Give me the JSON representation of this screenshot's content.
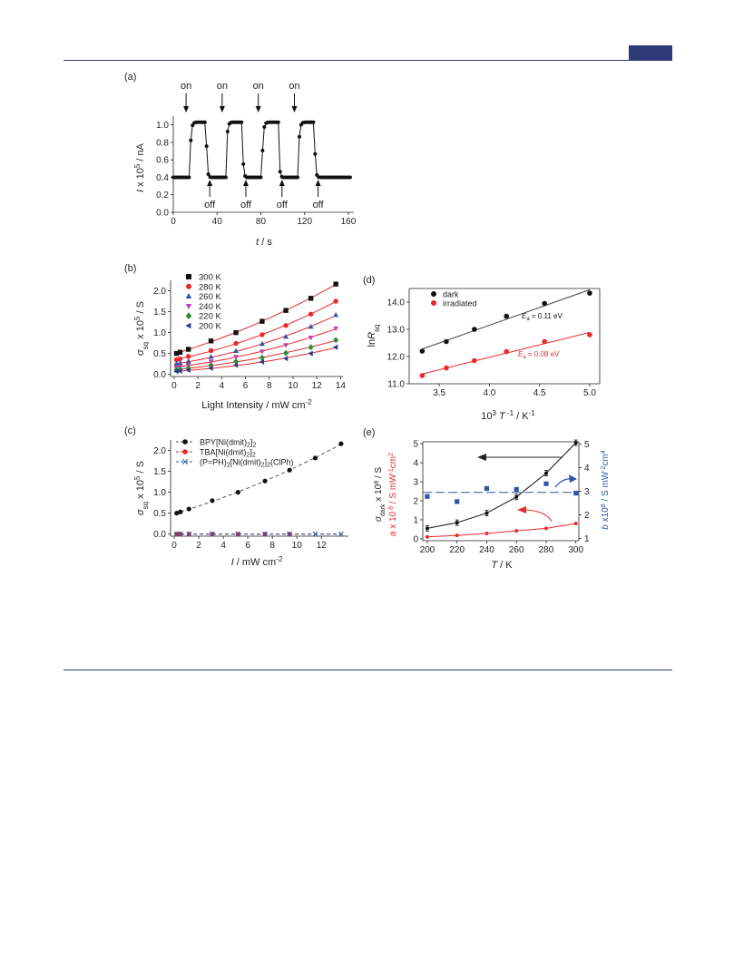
{
  "colors": {
    "rule": "#2e3a78",
    "black": "#111111",
    "red": "#e8292b",
    "blue": "#2b57a8",
    "green": "#2f8a3a",
    "magenta": "#c13fb8",
    "navy": "#2b3a8c"
  },
  "chart_data": [
    {
      "id": "a",
      "type": "line",
      "panel_label": "(a)",
      "xlabel_italic": "t",
      "xlabel_unit": " / s",
      "ylabel_italic": "I",
      "ylabel_rest": " x 10",
      "ylabel_sup": "5",
      "ylabel_unit": " / nA",
      "xlim": [
        0,
        165
      ],
      "ylim": [
        0,
        1.1
      ],
      "xticks": [
        0,
        40,
        80,
        120,
        160
      ],
      "yticks": [
        0.0,
        0.2,
        0.4,
        0.6,
        0.8,
        1.0
      ],
      "on_label": "on",
      "off_label": "off",
      "on_times": [
        15,
        48,
        81,
        114
      ],
      "off_times": [
        30,
        63,
        96,
        129
      ],
      "low_level": 0.4,
      "high_level": 1.03
    },
    {
      "id": "b",
      "type": "scatter",
      "panel_label": "(b)",
      "xlabel": "Light Intensity / mW cm",
      "xlabel_sup": "-2",
      "ylabel_italic": "σ",
      "ylabel_sub": "sq",
      "ylabel_rest": " x 10",
      "ylabel_sup": "5",
      "ylabel_unit": " / S",
      "xlim": [
        -0.3,
        14.2
      ],
      "ylim": [
        -0.05,
        2.25
      ],
      "xticks": [
        0,
        2,
        4,
        6,
        8,
        10,
        12,
        14
      ],
      "yticks": [
        0.0,
        0.5,
        1.0,
        1.5,
        2.0
      ],
      "x": [
        0.2,
        0.5,
        1.2,
        3.1,
        5.2,
        7.4,
        9.4,
        11.5,
        13.6
      ],
      "series": [
        {
          "name": "300 K",
          "marker": "square",
          "color": "#111111",
          "values": [
            0.5,
            0.53,
            0.6,
            0.8,
            1.0,
            1.27,
            1.53,
            1.82,
            2.16
          ]
        },
        {
          "name": "280 K",
          "marker": "circle",
          "color": "#e8292b",
          "values": [
            0.35,
            0.37,
            0.43,
            0.57,
            0.74,
            0.95,
            1.17,
            1.44,
            1.75
          ]
        },
        {
          "name": "260 K",
          "marker": "triangle-up",
          "color": "#2b57a8",
          "values": [
            0.25,
            0.27,
            0.31,
            0.42,
            0.56,
            0.73,
            0.9,
            1.14,
            1.42
          ]
        },
        {
          "name": "240 K",
          "marker": "triangle-down",
          "color": "#c13fb8",
          "values": [
            0.17,
            0.18,
            0.22,
            0.31,
            0.42,
            0.55,
            0.7,
            0.88,
            1.1
          ]
        },
        {
          "name": "220 K",
          "marker": "diamond",
          "color": "#2f8a3a",
          "values": [
            0.11,
            0.12,
            0.15,
            0.22,
            0.31,
            0.4,
            0.51,
            0.65,
            0.82
          ]
        },
        {
          "name": "200 K",
          "marker": "triangle-left",
          "color": "#2b3a8c",
          "values": [
            0.07,
            0.08,
            0.1,
            0.15,
            0.22,
            0.3,
            0.38,
            0.5,
            0.65
          ]
        }
      ]
    },
    {
      "id": "c",
      "type": "scatter",
      "panel_label": "(c)",
      "xlabel_italic": "I",
      "xlabel_unit": " / mW cm",
      "xlabel_sup": "-2",
      "ylabel_italic": "σ",
      "ylabel_sub": "sq",
      "ylabel_rest": " x 10",
      "ylabel_sup": "5",
      "ylabel_unit": " / S",
      "xlim": [
        -0.3,
        14.2
      ],
      "ylim": [
        -0.05,
        2.25
      ],
      "xticks": [
        0,
        2,
        4,
        6,
        8,
        10,
        12
      ],
      "yticks": [
        0.0,
        0.5,
        1.0,
        1.5,
        2.0
      ],
      "series": [
        {
          "name": "BPY[Ni(dmit)",
          "name_sub": "2",
          "name_tail": "]",
          "name_sub2": "2",
          "marker": "circle",
          "color": "#111111",
          "line": "dashed",
          "x": [
            0.2,
            0.5,
            1.2,
            3.1,
            5.2,
            7.4,
            9.4,
            11.5,
            13.6
          ],
          "values": [
            0.5,
            0.53,
            0.6,
            0.8,
            1.0,
            1.27,
            1.53,
            1.82,
            2.16
          ]
        },
        {
          "name": "TBA[Ni(dmit)",
          "name_sub": "2",
          "name_tail": "]",
          "name_sub2": "2",
          "marker": "circle",
          "color": "#e8292b",
          "line": "dashed",
          "x": [
            0.2,
            0.5,
            1.2,
            3.1,
            5.2,
            7.4,
            9.4
          ],
          "values": [
            0.0,
            0.0,
            0.0,
            0.0,
            0.0,
            0.0,
            0.0
          ]
        },
        {
          "name": "(P=PH)",
          "name_sub": "2",
          "name_tail": "[Ni(dmit)",
          "name_sub2": "2",
          "name_tail2": "]",
          "name_sub3": "2",
          "name_tail3": "(ClPh)",
          "marker": "x",
          "color": "#2b57a8",
          "line": "dashed",
          "x": [
            0.2,
            0.5,
            1.2,
            3.1,
            5.2,
            7.4,
            9.4,
            11.5,
            13.6
          ],
          "values": [
            0.0,
            0.0,
            0.0,
            0.0,
            0.0,
            0.0,
            0.0,
            0.0,
            0.0
          ]
        }
      ]
    },
    {
      "id": "d",
      "type": "scatter",
      "panel_label": "(d)",
      "xlabel_pre": "10",
      "xlabel_sup": "3",
      "xlabel_italic": " T",
      "xlabel_sup2": " -1",
      "xlabel_unit": " / K",
      "xlabel_sup3": "-1",
      "ylabel_pre": "ln",
      "ylabel_italic": "R",
      "ylabel_sub": "sq",
      "xlim": [
        3.2,
        5.1
      ],
      "ylim": [
        11.0,
        14.5
      ],
      "xticks": [
        3.5,
        4.0,
        4.5,
        5.0
      ],
      "yticks": [
        11.0,
        12.0,
        13.0,
        14.0
      ],
      "series": [
        {
          "name": "dark",
          "color": "#111111",
          "x": [
            3.33,
            3.57,
            3.85,
            4.17,
            4.55,
            5.0
          ],
          "values": [
            12.2,
            12.55,
            13.0,
            13.48,
            13.95,
            14.33
          ]
        },
        {
          "name": "irradiated",
          "color": "#e8292b",
          "x": [
            3.33,
            3.57,
            3.85,
            4.17,
            4.55,
            5.0
          ],
          "values": [
            11.3,
            11.58,
            11.85,
            12.18,
            12.55,
            12.8
          ]
        }
      ],
      "annotations": [
        {
          "italic": "E",
          "sub": "a",
          "text": " = 0.11 eV",
          "color": "#111111"
        },
        {
          "italic": "E",
          "sub": "a",
          "text": " = 0.08 eV",
          "color": "#e8292b"
        }
      ]
    },
    {
      "id": "e",
      "type": "line",
      "panel_label": "(e)",
      "xlabel_italic": "T",
      "xlabel_unit": " / K",
      "ylabel_left_italic": "σ",
      "ylabel_left_sub": "dark",
      "ylabel_left_rest": " x 10",
      "ylabel_left_sup": "8",
      "ylabel_left_unit": " / S",
      "ylabel_left2_italic": "a",
      "ylabel_left2_rest": " x 10",
      "ylabel_left2_sup": " 8",
      "ylabel_left2_unit": " / S mW",
      "ylabel_left2_sup2": "-1",
      "ylabel_left2_tail": "cm",
      "ylabel_left2_sup3": "2",
      "ylabel_right_italic": "b",
      "ylabel_right_rest": " x10",
      "ylabel_right_sup": "8",
      "ylabel_right_unit": " / S mW",
      "ylabel_right_sup2": "-2",
      "ylabel_right_tail": "cm",
      "ylabel_right_sup3": "4",
      "xlim": [
        197,
        302
      ],
      "ylim_left": [
        -0.1,
        5.1
      ],
      "ylim_right": [
        0.9,
        5.1
      ],
      "xticks": [
        200,
        220,
        240,
        260,
        280,
        300
      ],
      "yticks_left": [
        0,
        1,
        2,
        3,
        4,
        5
      ],
      "yticks_right": [
        1,
        2,
        3,
        4,
        5
      ],
      "x": [
        200,
        220,
        240,
        260,
        280,
        300
      ],
      "series": [
        {
          "name": "σdark",
          "axis": "left",
          "color": "#111111",
          "values": [
            0.55,
            0.85,
            1.35,
            2.2,
            3.45,
            5.05
          ]
        },
        {
          "name": "a",
          "axis": "left",
          "color": "#e8292b",
          "values": [
            0.1,
            0.18,
            0.28,
            0.42,
            0.55,
            0.8
          ]
        },
        {
          "name": "b",
          "axis": "right",
          "color": "#2b57a8",
          "marker": "square",
          "values": [
            2.78,
            2.56,
            3.12,
            3.08,
            3.32,
            2.92
          ]
        }
      ],
      "b_mean": 2.95
    }
  ]
}
